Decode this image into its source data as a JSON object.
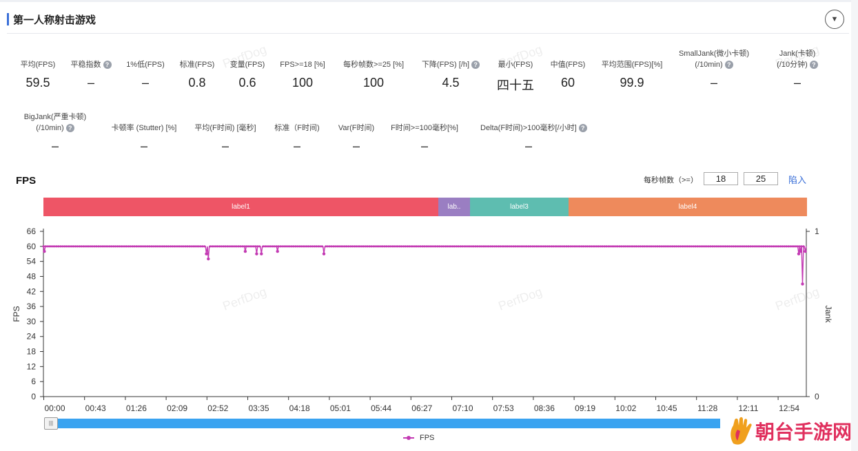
{
  "header": {
    "title": "第一人称射击游戏"
  },
  "metrics_row1": [
    {
      "label": "平均(FPS)",
      "value": "59.5",
      "help": false
    },
    {
      "label": "平稳指数",
      "value": "–",
      "help": true
    },
    {
      "label": "1%低(FPS)",
      "value": "–",
      "help": false
    },
    {
      "label": "标准(FPS)",
      "value": "0.8",
      "help": false
    },
    {
      "label": "变量(FPS)",
      "value": "0.6",
      "help": false
    },
    {
      "label": "FPS>=18 [%]",
      "value": "100",
      "help": false
    },
    {
      "label": "每秒帧数>=25 [%]",
      "value": "100",
      "help": false
    },
    {
      "label": "下降(FPS) [/h]",
      "value": "4.5",
      "help": true
    },
    {
      "label": "最小(FPS)",
      "value": "四十五",
      "help": false
    },
    {
      "label": "中值(FPS)",
      "value": "60",
      "help": false
    },
    {
      "label": "平均范围(FPS)[%]",
      "value": "99.9",
      "help": false
    },
    {
      "label": "SmallJank(微小卡顿)",
      "label2": "(/10min)",
      "value": "–",
      "help": true
    },
    {
      "label": "Jank(卡顿)",
      "label2": "(/10分钟)",
      "value": "–",
      "help": true
    }
  ],
  "metrics_row2": [
    {
      "label": "BigJank(严重卡顿)",
      "label2": "(/10min)",
      "value": "–",
      "help": true
    },
    {
      "label": "卡顿率 (Stutter) [%]",
      "value": "–",
      "help": false
    },
    {
      "label": "平均(F时间) [毫秒]",
      "value": "–",
      "help": false
    },
    {
      "label": "标准（F时间)",
      "value": "–",
      "help": false
    },
    {
      "label": "Var(F时间)",
      "value": "–",
      "help": false
    },
    {
      "label": "F时间>=100毫秒[%]",
      "value": "–",
      "help": false
    },
    {
      "label": "Delta(F时间)>100毫秒[/小时]",
      "value": "–",
      "help": true
    }
  ],
  "watermark": "PerfDog",
  "fps_panel": {
    "title": "FPS",
    "threshold_label": "每秒帧数（>=）",
    "threshold1": "18",
    "threshold2": "25",
    "link_label": "陷入"
  },
  "labels": [
    {
      "name": "label1",
      "color": "#ee5566"
    },
    {
      "name": "lab..",
      "color": "#9a7ec2"
    },
    {
      "name": "label3",
      "color": "#5ebdb0"
    },
    {
      "name": "label4",
      "color": "#ee8a5c"
    }
  ],
  "chart_data": {
    "type": "line",
    "title": "",
    "xlabel": "",
    "ylabel": "FPS",
    "y2label": "Jank",
    "ylim": [
      0,
      66
    ],
    "y2lim": [
      0,
      1
    ],
    "yticks": [
      0,
      6,
      12,
      18,
      24,
      30,
      36,
      42,
      48,
      54,
      60,
      66
    ],
    "y2ticks": [
      0,
      1
    ],
    "xticks": [
      "00:00",
      "00:43",
      "01:26",
      "02:09",
      "02:52",
      "03:35",
      "04:18",
      "05:01",
      "05:44",
      "06:27",
      "07:10",
      "07:53",
      "08:36",
      "09:19",
      "10:02",
      "10:45",
      "11:28",
      "12:11",
      "12:54"
    ],
    "x_range_seconds": [
      0,
      805
    ],
    "series": [
      {
        "name": "FPS",
        "color": "#c33ab3",
        "baseline": 60,
        "dips": [
          {
            "t": 1,
            "v": 58
          },
          {
            "t": 172,
            "v": 57
          },
          {
            "t": 174,
            "v": 55
          },
          {
            "t": 213,
            "v": 58
          },
          {
            "t": 225,
            "v": 57
          },
          {
            "t": 230,
            "v": 57
          },
          {
            "t": 247,
            "v": 58
          },
          {
            "t": 296,
            "v": 57
          },
          {
            "t": 797,
            "v": 57
          },
          {
            "t": 799,
            "v": 58
          },
          {
            "t": 801,
            "v": 45
          },
          {
            "t": 804,
            "v": 58
          }
        ]
      }
    ],
    "legend": [
      "FPS"
    ]
  },
  "logo": {
    "text": "朝台手游网"
  }
}
